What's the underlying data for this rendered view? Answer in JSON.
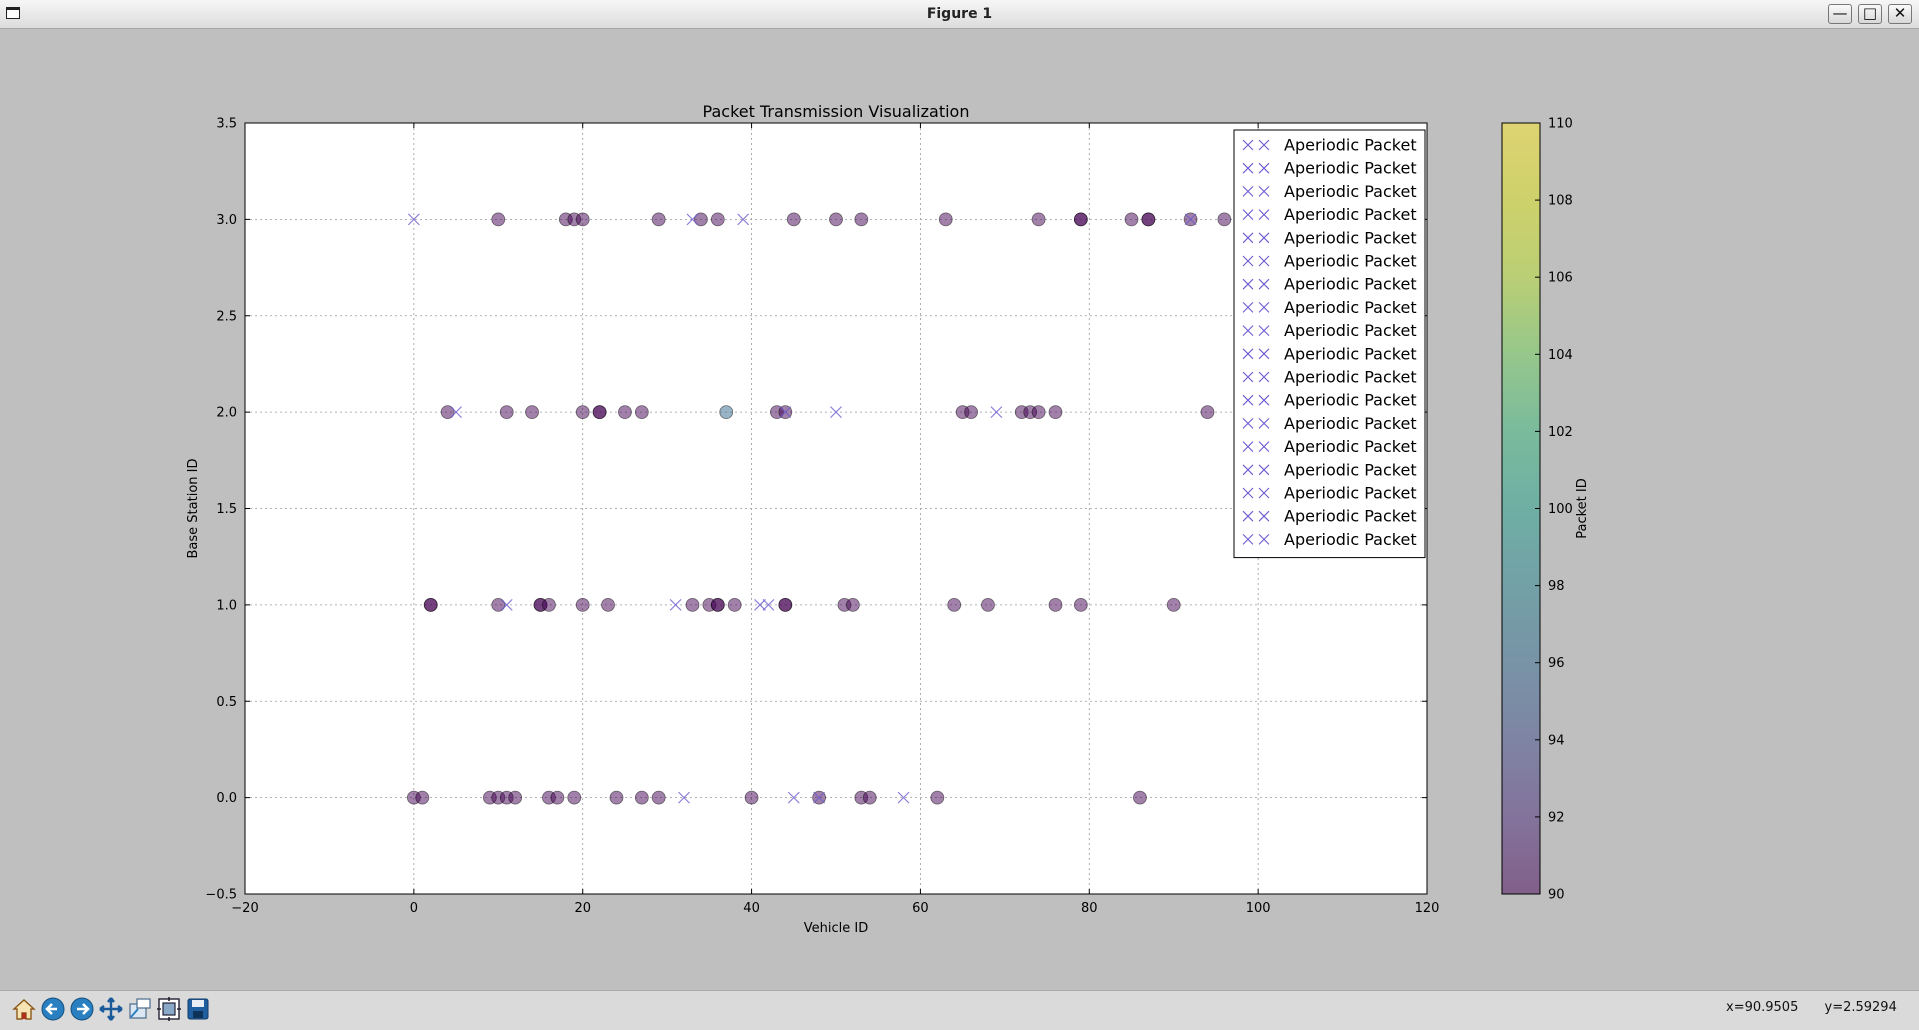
{
  "window": {
    "title": "Figure 1"
  },
  "toolbar": {
    "buttons": [
      "home-icon",
      "back-arrow-icon",
      "forward-arrow-icon",
      "pan-icon",
      "zoom-icon",
      "configure-subplots-icon",
      "save-icon"
    ],
    "coord_x": "x=90.9505",
    "coord_y": "y=2.59294"
  },
  "chart_data": {
    "type": "scatter",
    "title": "Packet Transmission Visualization",
    "xlabel": "Vehicle ID",
    "ylabel": "Base Station ID",
    "xlim": [
      -20,
      120
    ],
    "ylim": [
      -0.5,
      3.5
    ],
    "xticks": [
      -20,
      0,
      20,
      40,
      60,
      80,
      100,
      120
    ],
    "xtick_labels": [
      "−20",
      "0",
      "20",
      "40",
      "60",
      "80",
      "100",
      "120"
    ],
    "yticks": [
      -0.5,
      0.0,
      0.5,
      1.0,
      1.5,
      2.0,
      2.5,
      3.0,
      3.5
    ],
    "ytick_labels": [
      "−0.5",
      "0.0",
      "0.5",
      "1.0",
      "1.5",
      "2.0",
      "2.5",
      "3.0",
      "3.5"
    ],
    "grid": true,
    "legend_placement": "top-right",
    "legend_entries": [
      "Aperiodic Packet",
      "Aperiodic Packet",
      "Aperiodic Packet",
      "Aperiodic Packet",
      "Aperiodic Packet",
      "Aperiodic Packet",
      "Aperiodic Packet",
      "Aperiodic Packet",
      "Aperiodic Packet",
      "Aperiodic Packet",
      "Aperiodic Packet",
      "Aperiodic Packet",
      "Aperiodic Packet",
      "Aperiodic Packet",
      "Aperiodic Packet",
      "Aperiodic Packet",
      "Aperiodic Packet",
      "Aperiodic Packet"
    ],
    "colorbar": {
      "label": "Packet ID",
      "range": [
        90,
        110
      ],
      "ticks": [
        90,
        92,
        94,
        96,
        98,
        100,
        102,
        104,
        106,
        108,
        110
      ],
      "colormap": "viridis",
      "alpha": 0.5
    },
    "colors": {
      "marker_x": "#6b5bd0",
      "circle_default": "#440154",
      "axes_bg": "#ffffff",
      "figure_bg": "#bfbfbf"
    },
    "series": [
      {
        "marker": "circle",
        "points": [
          {
            "x": 10,
            "y": 3
          },
          {
            "x": 18,
            "y": 3
          },
          {
            "x": 19,
            "y": 3
          },
          {
            "x": 20,
            "y": 3
          },
          {
            "x": 29,
            "y": 3
          },
          {
            "x": 34,
            "y": 3
          },
          {
            "x": 36,
            "y": 3
          },
          {
            "x": 45,
            "y": 3
          },
          {
            "x": 50,
            "y": 3
          },
          {
            "x": 53,
            "y": 3
          },
          {
            "x": 63,
            "y": 3
          },
          {
            "x": 74,
            "y": 3
          },
          {
            "x": 79,
            "y": 3,
            "c": 90
          },
          {
            "x": 79,
            "y": 3
          },
          {
            "x": 85,
            "y": 3
          },
          {
            "x": 87,
            "y": 3,
            "c": 90
          },
          {
            "x": 87,
            "y": 3
          },
          {
            "x": 92,
            "y": 3
          },
          {
            "x": 96,
            "y": 3
          },
          {
            "x": 4,
            "y": 2
          },
          {
            "x": 11,
            "y": 2
          },
          {
            "x": 14,
            "y": 2
          },
          {
            "x": 20,
            "y": 2
          },
          {
            "x": 22,
            "y": 2,
            "c": 90
          },
          {
            "x": 22,
            "y": 2
          },
          {
            "x": 25,
            "y": 2
          },
          {
            "x": 27,
            "y": 2
          },
          {
            "x": 37,
            "y": 2,
            "c": 96
          },
          {
            "x": 43,
            "y": 2
          },
          {
            "x": 44,
            "y": 2
          },
          {
            "x": 65,
            "y": 2
          },
          {
            "x": 66,
            "y": 2
          },
          {
            "x": 72,
            "y": 2
          },
          {
            "x": 73,
            "y": 2
          },
          {
            "x": 74,
            "y": 2
          },
          {
            "x": 76,
            "y": 2
          },
          {
            "x": 94,
            "y": 2
          },
          {
            "x": 2,
            "y": 1,
            "c": 90
          },
          {
            "x": 2,
            "y": 1
          },
          {
            "x": 10,
            "y": 1
          },
          {
            "x": 15,
            "y": 1,
            "c": 90
          },
          {
            "x": 15,
            "y": 1
          },
          {
            "x": 16,
            "y": 1
          },
          {
            "x": 20,
            "y": 1
          },
          {
            "x": 23,
            "y": 1
          },
          {
            "x": 33,
            "y": 1
          },
          {
            "x": 35,
            "y": 1
          },
          {
            "x": 36,
            "y": 1,
            "c": 90
          },
          {
            "x": 36,
            "y": 1
          },
          {
            "x": 38,
            "y": 1
          },
          {
            "x": 44,
            "y": 1,
            "c": 90
          },
          {
            "x": 44,
            "y": 1
          },
          {
            "x": 51,
            "y": 1
          },
          {
            "x": 52,
            "y": 1
          },
          {
            "x": 64,
            "y": 1
          },
          {
            "x": 68,
            "y": 1
          },
          {
            "x": 76,
            "y": 1
          },
          {
            "x": 79,
            "y": 1
          },
          {
            "x": 90,
            "y": 1
          },
          {
            "x": 0,
            "y": 0
          },
          {
            "x": 1,
            "y": 0
          },
          {
            "x": 9,
            "y": 0
          },
          {
            "x": 10,
            "y": 0
          },
          {
            "x": 11,
            "y": 0
          },
          {
            "x": 12,
            "y": 0
          },
          {
            "x": 16,
            "y": 0
          },
          {
            "x": 17,
            "y": 0
          },
          {
            "x": 19,
            "y": 0
          },
          {
            "x": 24,
            "y": 0
          },
          {
            "x": 27,
            "y": 0
          },
          {
            "x": 29,
            "y": 0
          },
          {
            "x": 40,
            "y": 0
          },
          {
            "x": 48,
            "y": 0
          },
          {
            "x": 53,
            "y": 0
          },
          {
            "x": 54,
            "y": 0
          },
          {
            "x": 62,
            "y": 0
          },
          {
            "x": 86,
            "y": 0
          }
        ]
      },
      {
        "marker": "x",
        "points": [
          {
            "x": 0,
            "y": 3
          },
          {
            "x": 33,
            "y": 3
          },
          {
            "x": 39,
            "y": 3
          },
          {
            "x": 92,
            "y": 3
          },
          {
            "x": 5,
            "y": 2
          },
          {
            "x": 44,
            "y": 2
          },
          {
            "x": 50,
            "y": 2
          },
          {
            "x": 69,
            "y": 2
          },
          {
            "x": 11,
            "y": 1
          },
          {
            "x": 31,
            "y": 1
          },
          {
            "x": 41,
            "y": 1
          },
          {
            "x": 42,
            "y": 1
          },
          {
            "x": 32,
            "y": 0
          },
          {
            "x": 45,
            "y": 0
          },
          {
            "x": 48,
            "y": 0
          },
          {
            "x": 58,
            "y": 0
          }
        ]
      }
    ]
  }
}
